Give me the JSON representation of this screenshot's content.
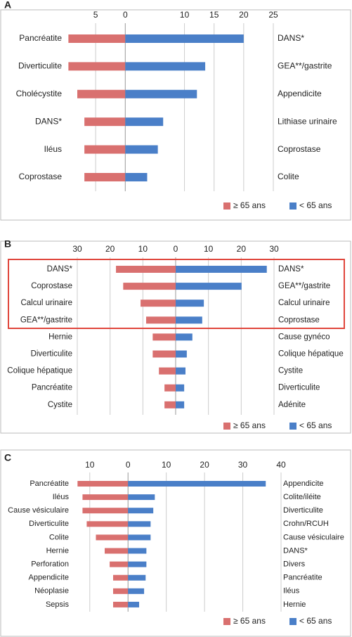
{
  "chart_data": [
    {
      "type": "bar",
      "label": "A",
      "xlim": [
        -10,
        25
      ],
      "xticks": [
        {
          "value": -5,
          "label": "5"
        },
        0,
        10,
        15,
        20,
        25
      ],
      "grid": true,
      "left_categories": [
        "Pancréatite",
        "Diverticulite",
        "Cholécystite",
        "DANS*",
        "Iléus",
        "Coprostase"
      ],
      "right_categories": [
        "DANS*",
        "GEA**/gastrite",
        "Appendicite",
        "Lithiase urinaire",
        "Coprostase",
        "Colite"
      ],
      "series": [
        {
          "name": "≥ 65 ans",
          "color": "#d9706f",
          "values": [
            9.6,
            9.6,
            8.1,
            6.9,
            6.9,
            6.9
          ]
        },
        {
          "name": "< 65 ans",
          "color": "#4a7fc8",
          "values": [
            20,
            13.5,
            12.1,
            6.4,
            5.5,
            3.7
          ]
        }
      ]
    },
    {
      "type": "bar",
      "label": "B",
      "xlim": [
        -30,
        30
      ],
      "xticks": [
        {
          "value": -30,
          "label": "30"
        },
        {
          "value": -20,
          "label": "20"
        },
        {
          "value": -10,
          "label": "10"
        },
        0,
        10,
        20,
        30
      ],
      "grid": true,
      "left_categories": [
        "DANS*",
        "Coprostase",
        "Calcul urinaire",
        "GEA**/gastrite",
        "Hernie",
        "Diverticulite",
        "Colique hépatique",
        "Pancréatite",
        "Cystite"
      ],
      "right_categories": [
        "DANS*",
        "GEA**/gastrite",
        "Calcul urinaire",
        "Coprostase",
        "Cause gynéco",
        "Colique hépatique",
        "Cystite",
        "Diverticulite",
        "Adénite"
      ],
      "series": [
        {
          "name": "≥ 65 ans",
          "color": "#d9706f",
          "values": [
            18.2,
            16,
            10.7,
            9,
            7,
            7,
            5.1,
            3.4,
            3.4
          ]
        },
        {
          "name": "< 65 ans",
          "color": "#4a7fc8",
          "values": [
            27.8,
            20.1,
            8.6,
            8.1,
            5.1,
            3.4,
            3,
            2.6,
            2.6
          ]
        }
      ]
    },
    {
      "type": "bar",
      "label": "C",
      "xlim": [
        -14,
        40
      ],
      "xticks": [
        {
          "value": -10,
          "label": "10"
        },
        0,
        10,
        20,
        30,
        40
      ],
      "grid": true,
      "left_categories": [
        "Pancréatite",
        "Iléus",
        "Cause vésiculaire",
        "Diverticulite",
        "Colite",
        "Hernie",
        "Perforation",
        "Appendicite",
        "Néoplasie",
        "Sepsis"
      ],
      "right_categories": [
        "Appendicite",
        "Colite/iléite",
        "Diverticulite",
        "Crohn/RCUH",
        "Cause vésiculaire",
        "DANS*",
        "Divers",
        "Pancréatite",
        "Iléus",
        "Hernie"
      ],
      "series": [
        {
          "name": "≥ 65 ans",
          "color": "#d9706f",
          "values": [
            13.2,
            11.9,
            11.9,
            10.8,
            8.4,
            6.1,
            4.8,
            3.9,
            3.9,
            3.9
          ]
        },
        {
          "name": "< 65 ans",
          "color": "#4a7fc8",
          "values": [
            36,
            7,
            6.6,
            5.9,
            5.9,
            4.8,
            4.8,
            4.6,
            4.2,
            2.9
          ]
        }
      ]
    }
  ]
}
